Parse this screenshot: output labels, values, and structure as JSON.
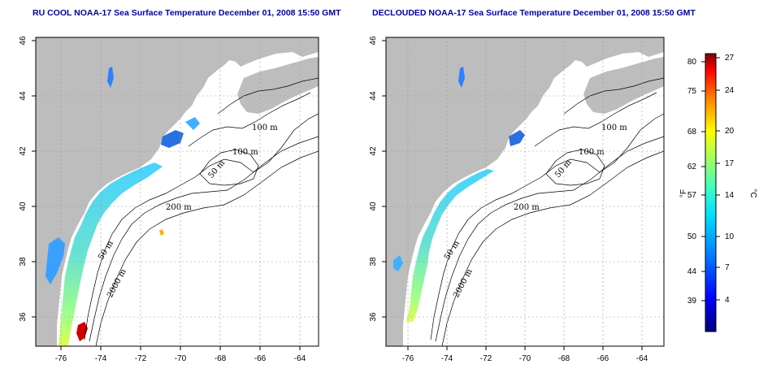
{
  "panels": [
    {
      "title": "RU COOL NOAA-17 Sea Surface Temperature December 01, 2008 15:50 GMT",
      "contour_labels": [
        "100 m",
        "100 m",
        "50 m",
        "200 m",
        "50 m",
        "2000 m"
      ]
    },
    {
      "title": "DECLOUDED NOAA-17 Sea Surface Temperature December 01, 2008 15:50 GMT",
      "contour_labels": [
        "100 m",
        "100 m",
        "50 m",
        "200 m",
        "50 m",
        "2000 m"
      ]
    }
  ],
  "axes": {
    "lon_ticks": [
      "-76",
      "-74",
      "-72",
      "-70",
      "-68",
      "-66",
      "-64"
    ],
    "lat_ticks": [
      "36",
      "38",
      "40",
      "42",
      "44",
      "46"
    ]
  },
  "colorbar": {
    "fahrenheit_ticks": [
      "80",
      "75",
      "68",
      "62",
      "57",
      "50",
      "44",
      "39"
    ],
    "celsius_ticks": [
      "27",
      "24",
      "20",
      "17",
      "14",
      "10",
      "7",
      "4"
    ],
    "fahrenheit_unit": "°F",
    "celsius_unit": "°C"
  },
  "colors": {
    "land": "#bdbdbd",
    "title": "#0000a0"
  }
}
